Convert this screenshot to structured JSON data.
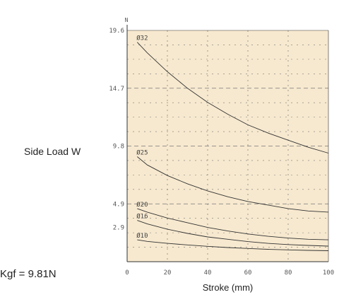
{
  "chart_data": {
    "type": "line",
    "y_unit": "N",
    "ylabel": "Side  Load W",
    "xlabel": "Stroke (mm)",
    "note": "Kgf = 9.81N",
    "xlim": [
      0,
      100
    ],
    "ylim": [
      0,
      19.6
    ],
    "x_ticks": [
      0,
      20,
      40,
      60,
      80,
      100
    ],
    "x_tick_labels": [
      "0",
      "20",
      "40",
      "60",
      "80",
      "100"
    ],
    "y_ticks": [
      2.9,
      4.9,
      9.8,
      14.7,
      19.6
    ],
    "y_tick_labels": [
      "2.9",
      "4.9",
      "9.8",
      "14.7",
      "19.6"
    ],
    "grid": true,
    "series": [
      {
        "name": "Ø32",
        "x": [
          5,
          10,
          20,
          30,
          40,
          50,
          60,
          70,
          80,
          90,
          100
        ],
        "y": [
          18.6,
          17.7,
          16.1,
          14.7,
          13.5,
          12.5,
          11.6,
          10.9,
          10.3,
          9.7,
          9.2
        ]
      },
      {
        "name": "Ø25",
        "x": [
          5,
          10,
          20,
          30,
          40,
          50,
          60,
          70,
          80,
          90,
          100
        ],
        "y": [
          8.9,
          8.2,
          7.3,
          6.6,
          6.0,
          5.5,
          5.1,
          4.8,
          4.5,
          4.3,
          4.2
        ]
      },
      {
        "name": "Ø20",
        "x": [
          5,
          10,
          20,
          30,
          40,
          50,
          60,
          70,
          80,
          90,
          100
        ],
        "y": [
          4.5,
          4.2,
          3.7,
          3.3,
          2.9,
          2.6,
          2.35,
          2.15,
          2.0,
          1.9,
          1.85
        ]
      },
      {
        "name": "Ø16",
        "x": [
          5,
          10,
          20,
          30,
          40,
          50,
          60,
          70,
          80,
          90,
          100
        ],
        "y": [
          3.5,
          3.2,
          2.75,
          2.4,
          2.1,
          1.9,
          1.7,
          1.55,
          1.45,
          1.38,
          1.32
        ]
      },
      {
        "name": "Ø10",
        "x": [
          5,
          10,
          20,
          30,
          40,
          50,
          60,
          70,
          80,
          90,
          100
        ],
        "y": [
          1.85,
          1.72,
          1.55,
          1.42,
          1.3,
          1.2,
          1.12,
          1.05,
          1.0,
          0.96,
          0.93
        ]
      }
    ],
    "colors": {
      "plot_bg": "#f7e9cf",
      "grid": "#777777",
      "series": "#333333",
      "axis": "#333333"
    }
  }
}
